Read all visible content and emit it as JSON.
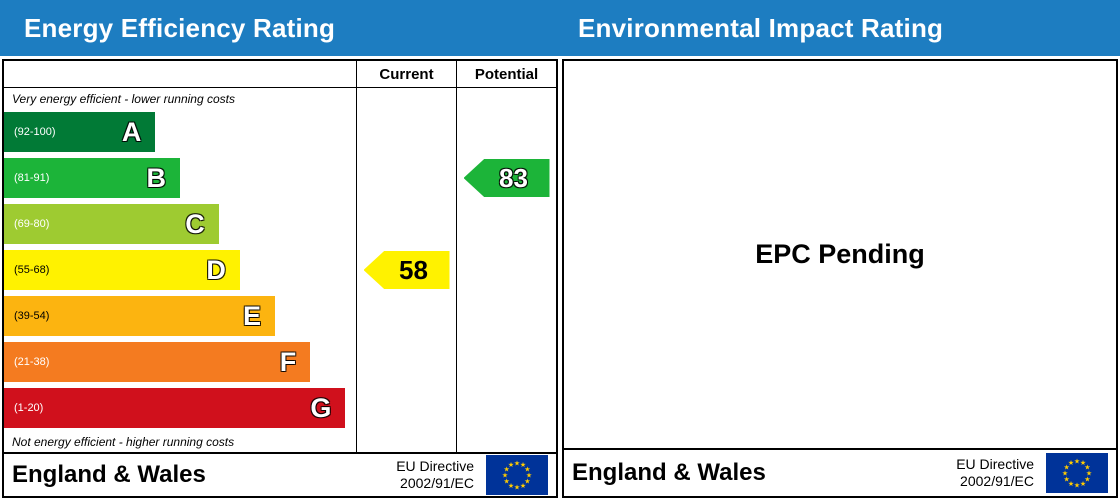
{
  "header": {
    "left_title": "Energy Efficiency Rating",
    "right_title": "Environmental Impact Rating",
    "bg_color": "#1d7dc1"
  },
  "chart_data": {
    "type": "bar",
    "title": "Energy Efficiency Rating",
    "columns": [
      "Current",
      "Potential"
    ],
    "top_note": "Very energy efficient - lower running costs",
    "bottom_note": "Not energy efficient - higher running costs",
    "bands": [
      {
        "letter": "A",
        "range": "(92-100)",
        "color": "#017a36",
        "width_pct": 43,
        "range_color": "#ffffff"
      },
      {
        "letter": "B",
        "range": "(81-91)",
        "color": "#1cb439",
        "width_pct": 50,
        "range_color": "#ffffff"
      },
      {
        "letter": "C",
        "range": "(69-80)",
        "color": "#9ecb31",
        "width_pct": 61,
        "range_color": "#ffffff"
      },
      {
        "letter": "D",
        "range": "(55-68)",
        "color": "#fff200",
        "width_pct": 67,
        "range_color": "#000000"
      },
      {
        "letter": "E",
        "range": "(39-54)",
        "color": "#fcb410",
        "width_pct": 77,
        "range_color": "#000000"
      },
      {
        "letter": "F",
        "range": "(21-38)",
        "color": "#f47b20",
        "width_pct": 87,
        "range_color": "#ffffff"
      },
      {
        "letter": "G",
        "range": "(1-20)",
        "color": "#d0101c",
        "width_pct": 97,
        "range_color": "#ffffff"
      }
    ],
    "current": {
      "value": 58,
      "band": "D",
      "color": "#fff200",
      "text_color": "#000000"
    },
    "potential": {
      "value": 83,
      "band": "B",
      "color": "#1cb439",
      "text_color": "#ffffff"
    }
  },
  "right_panel": {
    "message": "EPC Pending"
  },
  "footer": {
    "region": "England & Wales",
    "directive_line1": "EU Directive",
    "directive_line2": "2002/91/EC",
    "flag_bg": "#003399",
    "star_color": "#ffcc00"
  }
}
